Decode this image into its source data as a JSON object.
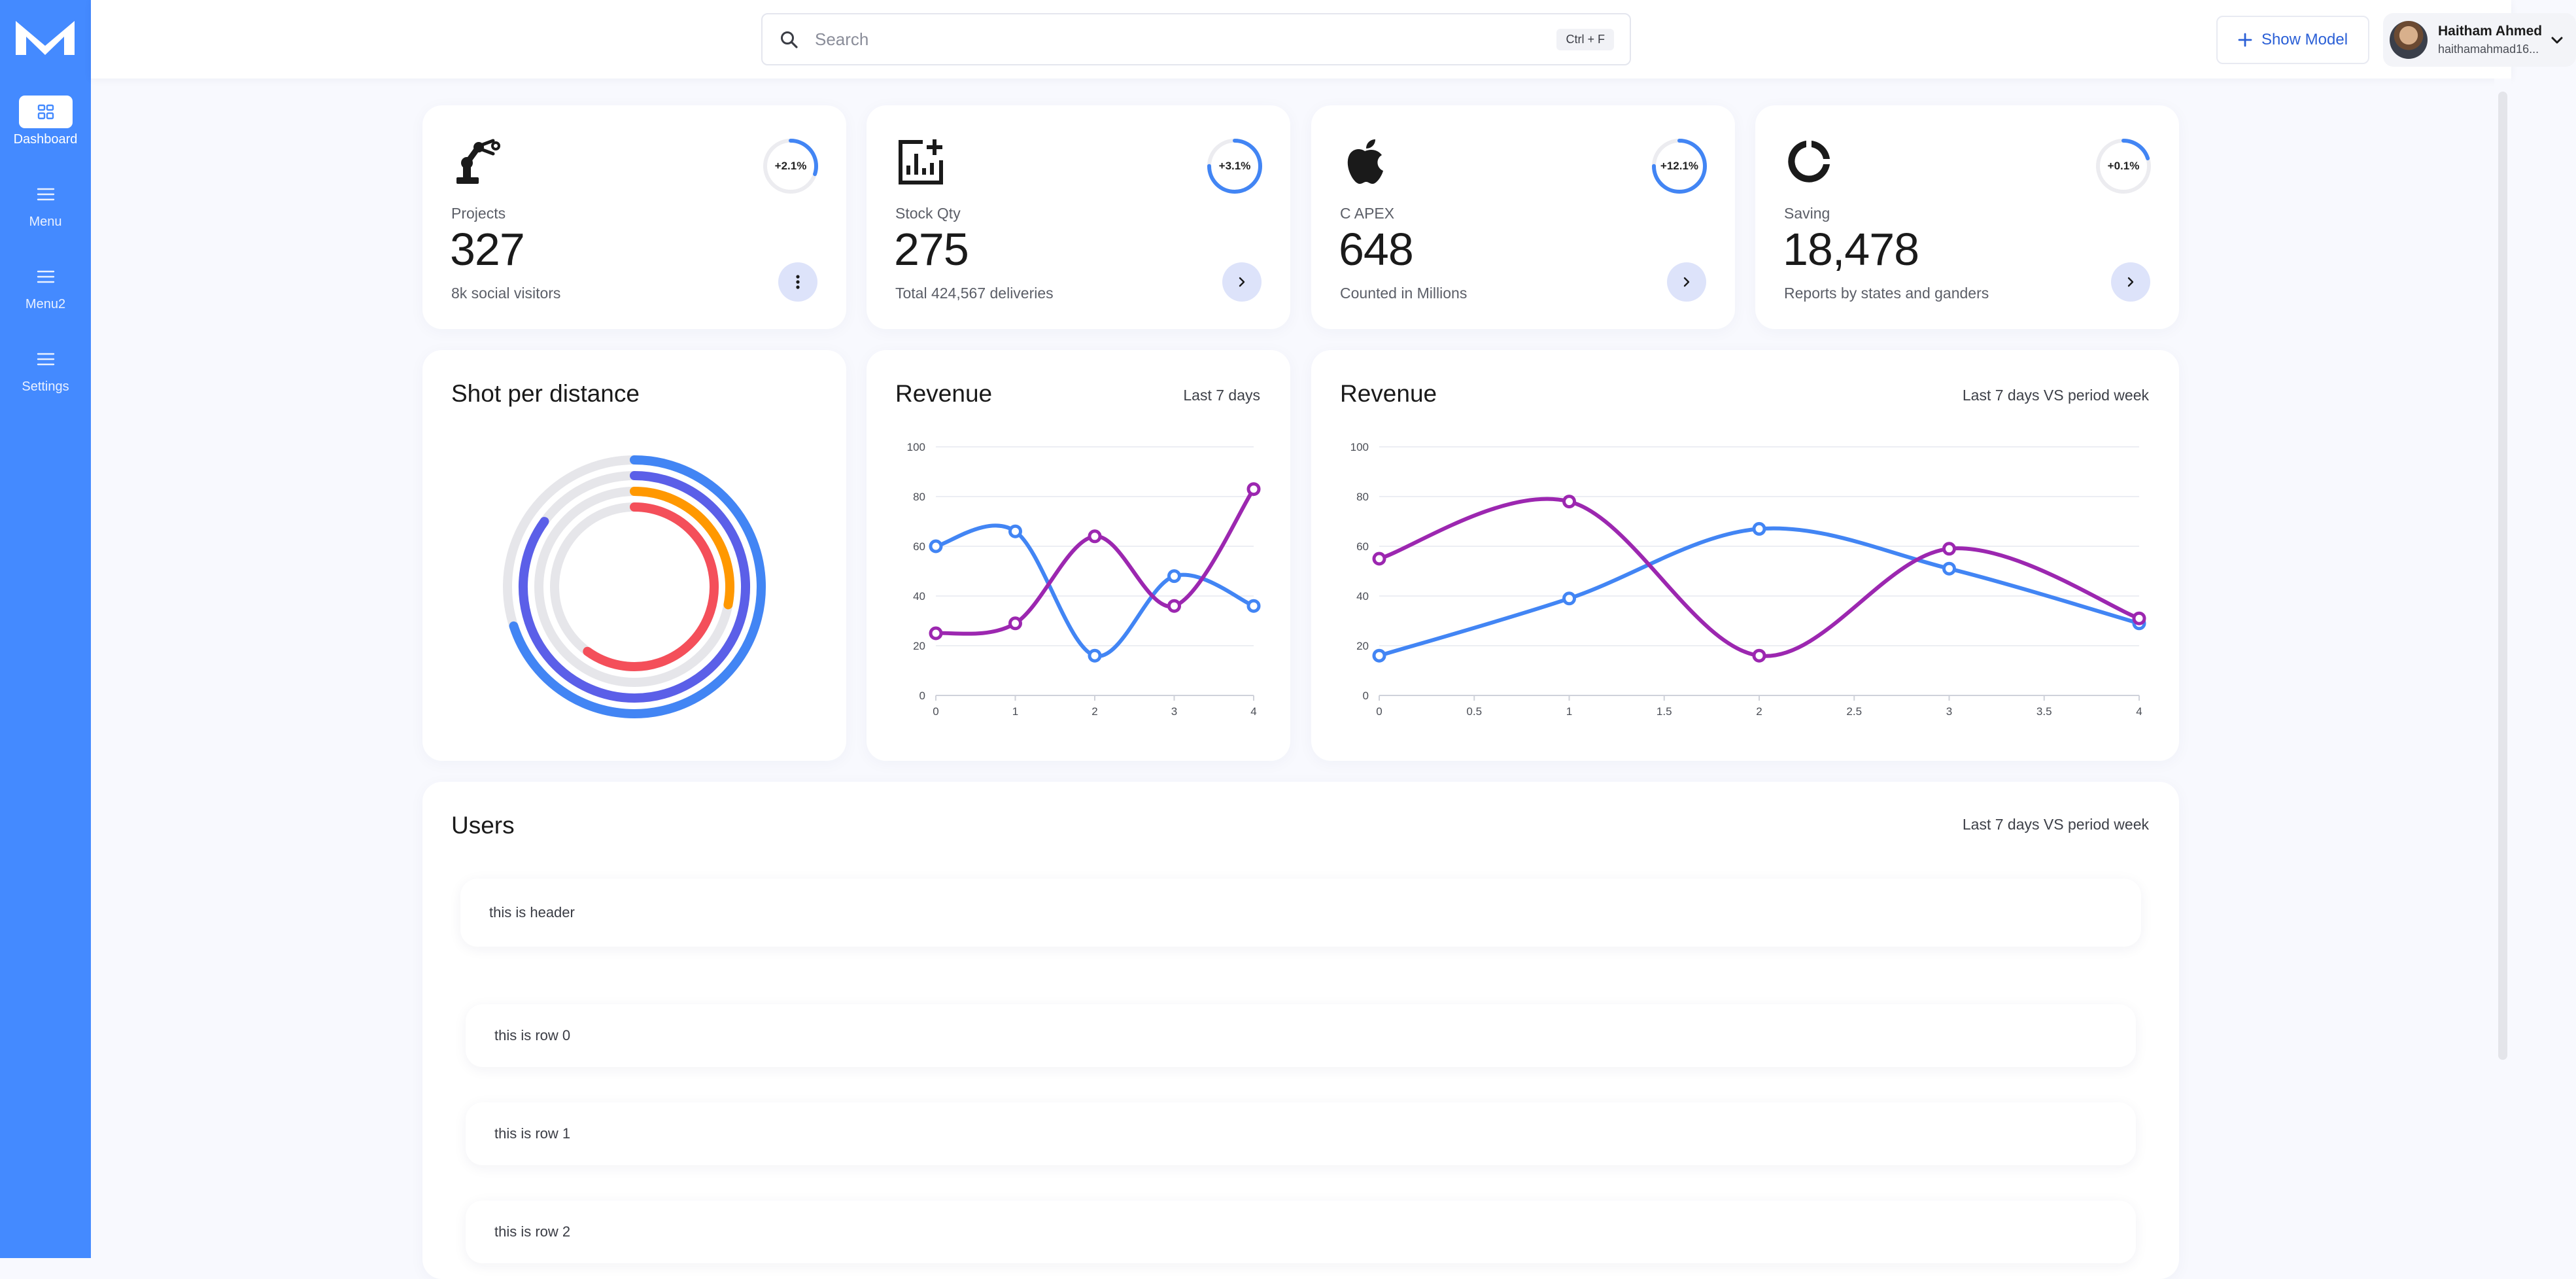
{
  "sidebar": {
    "items": [
      {
        "label": "Dashboard",
        "icon": "grid-icon",
        "active": true
      },
      {
        "label": "Menu",
        "icon": "hamburger-icon"
      },
      {
        "label": "Menu2",
        "icon": "hamburger-icon"
      },
      {
        "label": "Settings",
        "icon": "hamburger-icon"
      }
    ]
  },
  "search": {
    "placeholder": "Search",
    "shortcut": "Ctrl + F"
  },
  "header": {
    "show_model_label": "Show Model",
    "user_name": "Haitham Ahmed",
    "user_email": "haithamahmad16..."
  },
  "stats": [
    {
      "label": "Projects",
      "value": "327",
      "sub": "8k social visitors",
      "change": "+2.1%",
      "progress": 0.3,
      "icon": "robot-arm-icon",
      "action": "more-vertical-icon"
    },
    {
      "label": "Stock Qty",
      "value": "275",
      "sub": "Total 424,567 deliveries",
      "change": "+3.1%",
      "progress": 0.75,
      "icon": "add-chart-icon",
      "action": "chevron-right-icon"
    },
    {
      "label": "C APEX",
      "value": "648",
      "sub": "Counted in Millions",
      "change": "+12.1%",
      "progress": 0.75,
      "icon": "apple-icon",
      "action": "chevron-right-icon"
    },
    {
      "label": "Saving",
      "value": "18,478",
      "sub": "Reports by states and ganders",
      "change": "+0.1%",
      "progress": 0.2,
      "icon": "donut-icon",
      "action": "chevron-right-icon"
    }
  ],
  "shot_card": {
    "title": "Shot per distance"
  },
  "revenue_small": {
    "title": "Revenue",
    "note": "Last 7 days"
  },
  "revenue_large": {
    "title": "Revenue",
    "note": "Last 7 days VS period week"
  },
  "users": {
    "title": "Users",
    "note": "Last 7 days VS period week",
    "header": "this is header",
    "rows": [
      "this is row 0",
      "this is row 1",
      "this is row 2"
    ]
  },
  "colors": {
    "accent": "#448aff",
    "series_blue": "#4285f4",
    "series_purple": "#9c27b0",
    "ring_blue": "#4285f4",
    "ring_indigo": "#5b5fe8",
    "ring_orange": "#ff9800",
    "ring_red": "#f44f5a",
    "ring_track": "#e6e6ea"
  },
  "chart_data": [
    {
      "type": "radial-bar",
      "title": "Shot per distance",
      "values": [
        0.7,
        0.85,
        0.28,
        0.6
      ],
      "colors": [
        "#4285f4",
        "#5b5fe8",
        "#ff9800",
        "#f44f5a"
      ]
    },
    {
      "type": "line",
      "title": "Revenue",
      "x": [
        0,
        1,
        2,
        3,
        4
      ],
      "ylim": [
        0,
        100
      ],
      "yticks": [
        0,
        20,
        40,
        60,
        80,
        100
      ],
      "xticks": [
        "0",
        "1",
        "2",
        "3",
        "4"
      ],
      "series": [
        {
          "color": "#4285f4",
          "values": [
            60,
            66,
            16,
            48,
            36
          ]
        },
        {
          "color": "#9c27b0",
          "values": [
            25,
            29,
            64,
            36,
            83
          ]
        }
      ]
    },
    {
      "type": "line",
      "title": "Revenue",
      "x": [
        0,
        1,
        2,
        3,
        4
      ],
      "ylim": [
        0,
        100
      ],
      "yticks": [
        0,
        20,
        40,
        60,
        80,
        100
      ],
      "xticks": [
        "0",
        "0.5",
        "1",
        "1.5",
        "2",
        "2.5",
        "3",
        "3.5",
        "4"
      ],
      "series": [
        {
          "color": "#4285f4",
          "values": [
            16,
            39,
            67,
            51,
            29
          ]
        },
        {
          "color": "#9c27b0",
          "values": [
            55,
            78,
            16,
            59,
            31
          ]
        }
      ]
    }
  ]
}
